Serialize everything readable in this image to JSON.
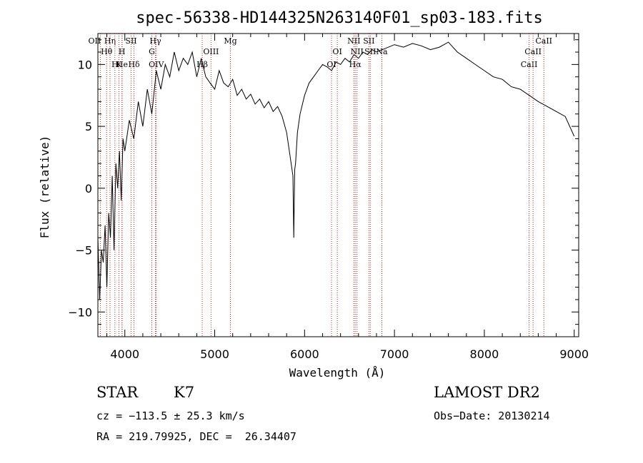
{
  "chart_data": {
    "type": "line",
    "title": "spec-56338-HD144325N263140F01_sp03-183.fits",
    "xlabel": "Wavelength (Å)",
    "ylabel": "Flux (relative)",
    "xlim": [
      3700,
      9050
    ],
    "ylim": [
      -12,
      12.5
    ],
    "xticks": [
      4000,
      5000,
      6000,
      7000,
      8000,
      9000
    ],
    "xtick_labels": [
      "4000",
      "5000",
      "6000",
      "7000",
      "8000",
      "9000"
    ],
    "yticks": [
      -10,
      -5,
      0,
      5,
      10
    ],
    "ytick_labels": [
      "−10",
      "−5",
      "0",
      "5",
      "10"
    ],
    "grid": false,
    "line_color": "#000000",
    "marker_color": "#b22222",
    "spectrum": {
      "x": [
        3700,
        3720,
        3740,
        3760,
        3780,
        3800,
        3820,
        3840,
        3860,
        3880,
        3900,
        3920,
        3940,
        3960,
        3980,
        4000,
        4050,
        4100,
        4150,
        4200,
        4250,
        4300,
        4350,
        4400,
        4450,
        4500,
        4550,
        4600,
        4650,
        4700,
        4750,
        4800,
        4850,
        4900,
        4950,
        5000,
        5050,
        5100,
        5150,
        5200,
        5250,
        5300,
        5350,
        5400,
        5450,
        5500,
        5550,
        5600,
        5650,
        5700,
        5750,
        5800,
        5850,
        5870,
        5880,
        5890,
        5900,
        5920,
        5950,
        6000,
        6050,
        6100,
        6150,
        6200,
        6250,
        6300,
        6350,
        6400,
        6450,
        6500,
        6550,
        6600,
        6650,
        6700,
        6750,
        6800,
        6900,
        7000,
        7100,
        7200,
        7300,
        7400,
        7500,
        7600,
        7700,
        7800,
        7900,
        8000,
        8100,
        8200,
        8300,
        8400,
        8500,
        8600,
        8700,
        8800,
        8900,
        8950,
        9000
      ],
      "y": [
        -4,
        -9,
        -5,
        -6,
        -3,
        -8,
        -2,
        -4,
        1,
        -5,
        2,
        0,
        3,
        -1,
        4,
        3,
        5.5,
        4,
        7,
        5,
        8,
        6,
        9.5,
        8,
        10,
        9,
        11,
        9.5,
        10.5,
        10,
        11,
        9,
        10.5,
        9,
        8.5,
        8,
        9.5,
        8.5,
        8.2,
        8.8,
        7.5,
        8,
        7.2,
        7.6,
        6.8,
        7.2,
        6.5,
        7,
        6.2,
        6.6,
        5.8,
        4.5,
        2,
        1,
        -4,
        1.5,
        2,
        4.5,
        6,
        7.5,
        8.5,
        9,
        9.5,
        10,
        9.8,
        9.5,
        10.2,
        10,
        10.5,
        10.2,
        10.8,
        10.5,
        11,
        10.8,
        11.2,
        11,
        11.3,
        11.6,
        11.4,
        11.7,
        11.5,
        11.2,
        11.4,
        11.8,
        11,
        10.5,
        10,
        9.5,
        9,
        8.8,
        8.2,
        8,
        7.5,
        7,
        6.6,
        6.2,
        5.8,
        5,
        4.2
      ]
    },
    "lines": [
      {
        "name": "OII",
        "x": 3727,
        "row": 1,
        "dx": -8
      },
      {
        "name": "Hη",
        "x": 3835,
        "row": 1,
        "dx": 0
      },
      {
        "name": "Hθ",
        "x": 3797,
        "row": 2,
        "dx": 0
      },
      {
        "name": "H",
        "x": 3889,
        "row": 3,
        "dx": 0
      },
      {
        "name": "He",
        "x": 3970,
        "row": 3,
        "dx": 0
      },
      {
        "name": "SII",
        "x": 4070,
        "row": 1,
        "dx": 0
      },
      {
        "name": "H",
        "x": 3968,
        "row": 2,
        "dx": 0
      },
      {
        "name": "Hδ",
        "x": 4102,
        "row": 3,
        "dx": 0
      },
      {
        "name": "K",
        "x": 3934,
        "row": 3,
        "dx": 0
      },
      {
        "name": "G",
        "x": 4300,
        "row": 2,
        "dx": 0
      },
      {
        "name": "Hγ",
        "x": 4340,
        "row": 1,
        "dx": 0
      },
      {
        "name": "OIV",
        "x": 4350,
        "row": 3,
        "dx": 0
      },
      {
        "name": "Hβ",
        "x": 4861,
        "row": 3,
        "dx": 0
      },
      {
        "name": "OIII",
        "x": 4959,
        "row": 2,
        "dx": 0
      },
      {
        "name": "Mg",
        "x": 5175,
        "row": 1,
        "dx": 0
      },
      {
        "name": "OI",
        "x": 6300,
        "row": 3,
        "dx": 0
      },
      {
        "name": "OI",
        "x": 6364,
        "row": 2,
        "dx": 0
      },
      {
        "name": "NII",
        "x": 6548,
        "row": 1,
        "dx": 0
      },
      {
        "name": "Hα",
        "x": 6563,
        "row": 3,
        "dx": 0
      },
      {
        "name": "NII",
        "x": 6583,
        "row": 2,
        "dx": 0
      },
      {
        "name": "SII",
        "x": 6716,
        "row": 1,
        "dx": 0
      },
      {
        "name": "SII",
        "x": 6731,
        "row": 2,
        "dx": 0
      },
      {
        "name": "Na",
        "x": 6860,
        "row": 2,
        "dx": 0
      },
      {
        "name": "CaII",
        "x": 8498,
        "row": 3,
        "dx": 0
      },
      {
        "name": "CaII",
        "x": 8542,
        "row": 2,
        "dx": 0
      },
      {
        "name": "CaII",
        "x": 8662,
        "row": 1,
        "dx": 0
      }
    ]
  },
  "footer": {
    "object_class": "STAR",
    "subclass": "K7",
    "survey": "LAMOST DR2",
    "cz": "cz = −113.5 ± 25.3 km/s",
    "obs_date": "Obs−Date: 20130214",
    "coords": "RA = 219.79925, DEC =  26.34407"
  }
}
